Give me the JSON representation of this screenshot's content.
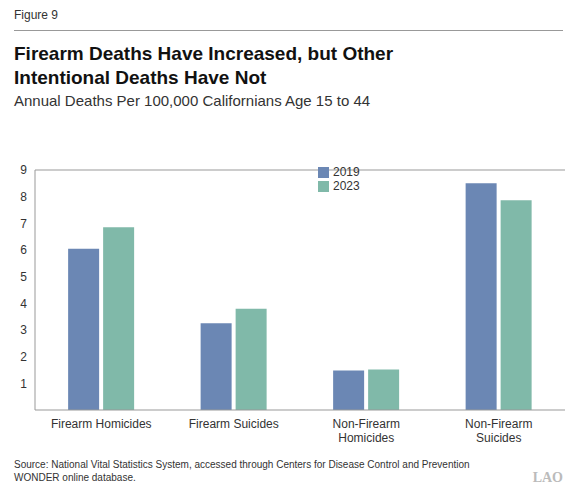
{
  "chart_data": {
    "type": "bar",
    "figure_label": "Figure 9",
    "title": "Firearm Deaths Have Increased, but Other Intentional Deaths Have Not",
    "subtitle": "Annual Deaths Per 100,000 Californians Age 15 to 44",
    "categories": [
      "Firearm Homicides",
      "Firearm Suicides",
      "Non-Firearm Homicides",
      "Non-Firearm Suicides"
    ],
    "series": [
      {
        "name": "2019",
        "color": "#6b87b4",
        "values": [
          6.05,
          3.25,
          1.48,
          8.5
        ]
      },
      {
        "name": "2023",
        "color": "#80b9a9",
        "values": [
          6.85,
          3.8,
          1.52,
          7.87
        ]
      }
    ],
    "ylim": [
      0,
      9
    ],
    "yticks": [
      1,
      2,
      3,
      4,
      5,
      6,
      7,
      8,
      9
    ],
    "grid": false,
    "legend": "top",
    "source": "Source: National Vital Statistics System, accessed through Centers for Disease Control and Prevention WONDER online database.",
    "logo": "LAO"
  }
}
